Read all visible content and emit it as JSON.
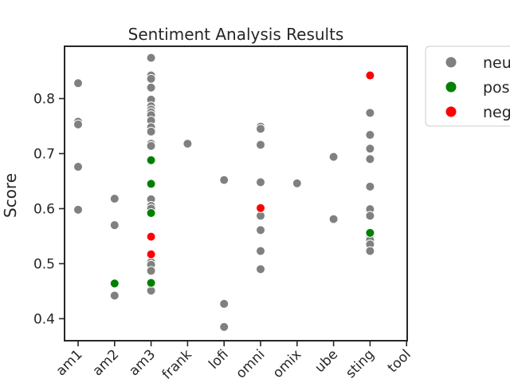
{
  "chart_data": {
    "type": "scatter",
    "title": "Sentiment Analysis Results",
    "xlabel": "",
    "ylabel": "Score",
    "ylim": [
      0.36,
      0.895
    ],
    "yticks": [
      0.4,
      0.5,
      0.6,
      0.7,
      0.8
    ],
    "categories": [
      "am1",
      "am2",
      "am3",
      "frank",
      "lofi",
      "omni",
      "omix",
      "ube",
      "sting",
      "tool"
    ],
    "grid": false,
    "legend_position": "outside-top-right",
    "series": [
      {
        "name": "neu",
        "color": "#808080",
        "points": [
          {
            "x": "am1",
            "y": 0.828
          },
          {
            "x": "am1",
            "y": 0.758
          },
          {
            "x": "am1",
            "y": 0.753
          },
          {
            "x": "am1",
            "y": 0.676
          },
          {
            "x": "am1",
            "y": 0.598
          },
          {
            "x": "am2",
            "y": 0.618
          },
          {
            "x": "am2",
            "y": 0.57
          },
          {
            "x": "am2",
            "y": 0.442
          },
          {
            "x": "am3",
            "y": 0.874
          },
          {
            "x": "am3",
            "y": 0.842
          },
          {
            "x": "am3",
            "y": 0.836
          },
          {
            "x": "am3",
            "y": 0.82
          },
          {
            "x": "am3",
            "y": 0.798
          },
          {
            "x": "am3",
            "y": 0.786
          },
          {
            "x": "am3",
            "y": 0.78
          },
          {
            "x": "am3",
            "y": 0.775
          },
          {
            "x": "am3",
            "y": 0.77
          },
          {
            "x": "am3",
            "y": 0.76
          },
          {
            "x": "am3",
            "y": 0.748
          },
          {
            "x": "am3",
            "y": 0.74
          },
          {
            "x": "am3",
            "y": 0.718
          },
          {
            "x": "am3",
            "y": 0.714
          },
          {
            "x": "am3",
            "y": 0.617
          },
          {
            "x": "am3",
            "y": 0.605
          },
          {
            "x": "am3",
            "y": 0.6
          },
          {
            "x": "am3",
            "y": 0.503
          },
          {
            "x": "am3",
            "y": 0.498
          },
          {
            "x": "am3",
            "y": 0.487
          },
          {
            "x": "am3",
            "y": 0.451
          },
          {
            "x": "frank",
            "y": 0.718
          },
          {
            "x": "lofi",
            "y": 0.652
          },
          {
            "x": "lofi",
            "y": 0.427
          },
          {
            "x": "lofi",
            "y": 0.385
          },
          {
            "x": "omni",
            "y": 0.749
          },
          {
            "x": "omni",
            "y": 0.745
          },
          {
            "x": "omni",
            "y": 0.716
          },
          {
            "x": "omni",
            "y": 0.648
          },
          {
            "x": "omni",
            "y": 0.587
          },
          {
            "x": "omni",
            "y": 0.561
          },
          {
            "x": "omni",
            "y": 0.523
          },
          {
            "x": "omni",
            "y": 0.49
          },
          {
            "x": "omix",
            "y": 0.646
          },
          {
            "x": "ube",
            "y": 0.694
          },
          {
            "x": "ube",
            "y": 0.581
          },
          {
            "x": "sting",
            "y": 0.774
          },
          {
            "x": "sting",
            "y": 0.734
          },
          {
            "x": "sting",
            "y": 0.709
          },
          {
            "x": "sting",
            "y": 0.69
          },
          {
            "x": "sting",
            "y": 0.64
          },
          {
            "x": "sting",
            "y": 0.599
          },
          {
            "x": "sting",
            "y": 0.587
          },
          {
            "x": "sting",
            "y": 0.548
          },
          {
            "x": "sting",
            "y": 0.543
          },
          {
            "x": "sting",
            "y": 0.535
          },
          {
            "x": "sting",
            "y": 0.523
          }
        ]
      },
      {
        "name": "pos",
        "color": "#008000",
        "points": [
          {
            "x": "am2",
            "y": 0.464
          },
          {
            "x": "am3",
            "y": 0.688
          },
          {
            "x": "am3",
            "y": 0.645
          },
          {
            "x": "am3",
            "y": 0.592
          },
          {
            "x": "am3",
            "y": 0.465
          },
          {
            "x": "sting",
            "y": 0.556
          }
        ]
      },
      {
        "name": "neg",
        "color": "#ff0000",
        "points": [
          {
            "x": "am3",
            "y": 0.549
          },
          {
            "x": "am3",
            "y": 0.517
          },
          {
            "x": "omni",
            "y": 0.601
          },
          {
            "x": "sting",
            "y": 0.842
          }
        ]
      }
    ]
  }
}
